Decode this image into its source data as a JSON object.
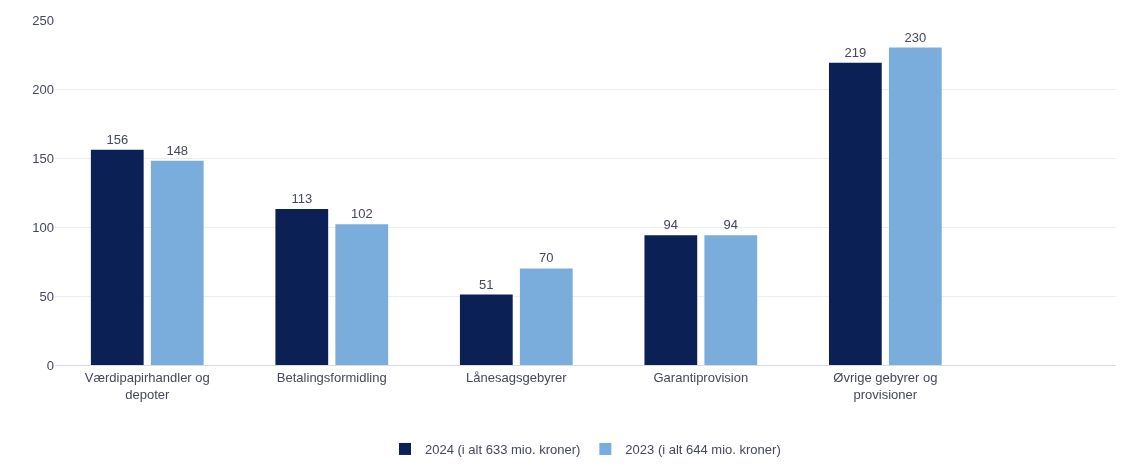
{
  "chart_data": {
    "type": "bar",
    "categories": [
      "Værdipapirhandler og depoter",
      "Betalingsformidling",
      "Lånesagsgebyrer",
      "Garantiprovision",
      "Øvrige gebyrer og provisioner"
    ],
    "series": [
      {
        "name": "2024 (i alt 633 mio. kroner)",
        "color": "#0b2155",
        "values": [
          156,
          113,
          51,
          94,
          219
        ]
      },
      {
        "name": "2023 (i alt 644 mio. kroner)",
        "color": "#7aaddb",
        "values": [
          148,
          102,
          70,
          94,
          230
        ]
      }
    ],
    "ylim": [
      0,
      250
    ],
    "yticks": [
      0,
      50,
      100,
      150,
      200,
      250
    ],
    "grid": "y",
    "legend": "bottom",
    "data_labels": true
  }
}
